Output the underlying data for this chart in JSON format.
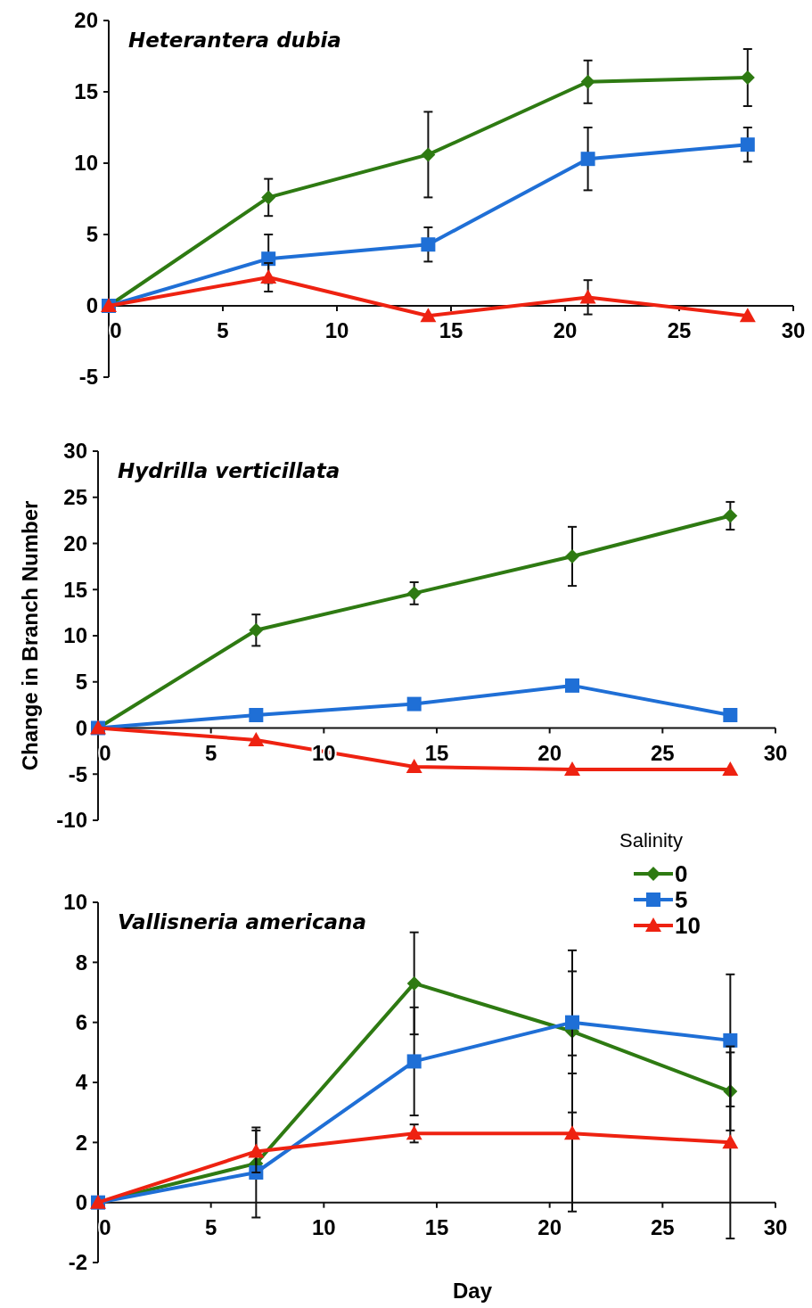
{
  "chart_data": [
    {
      "type": "line",
      "title": "Heterantera dubia",
      "x": [
        0,
        7,
        14,
        21,
        28
      ],
      "xlim": [
        0,
        30
      ],
      "xticks": [
        0,
        5,
        10,
        15,
        20,
        25,
        30
      ],
      "ylim": [
        -5,
        20
      ],
      "yticks": [
        -5,
        0,
        5,
        10,
        15,
        20
      ],
      "legend": false,
      "series": [
        {
          "color": "#2e7a12",
          "marker": "diamond",
          "values": [
            0,
            7.6,
            10.6,
            15.7,
            16.0
          ],
          "errors": [
            null,
            1.3,
            3.0,
            1.5,
            2.0
          ]
        },
        {
          "color": "#1f6fd6",
          "marker": "square",
          "values": [
            0,
            3.3,
            4.3,
            10.3,
            11.3
          ],
          "errors": [
            null,
            1.7,
            1.2,
            2.2,
            1.2
          ]
        },
        {
          "color": "#ee2211",
          "marker": "triangle",
          "values": [
            0,
            2.0,
            -0.7,
            0.6,
            -0.7
          ],
          "errors": [
            null,
            1.0,
            null,
            1.2,
            null
          ]
        }
      ]
    },
    {
      "type": "line",
      "title": "Hydrilla verticillata",
      "ylabel": "Change in Branch Number",
      "x": [
        0,
        7,
        14,
        21,
        28
      ],
      "xlim": [
        0,
        30
      ],
      "xticks": [
        0,
        5,
        10,
        15,
        20,
        25,
        30
      ],
      "ylim": [
        -10,
        30
      ],
      "yticks": [
        -10,
        -5,
        0,
        5,
        10,
        15,
        20,
        25,
        30
      ],
      "legend": false,
      "series": [
        {
          "color": "#2e7a12",
          "marker": "diamond",
          "values": [
            0,
            10.6,
            14.6,
            18.6,
            23.0
          ],
          "errors": [
            null,
            1.7,
            1.2,
            3.2,
            1.5
          ]
        },
        {
          "color": "#1f6fd6",
          "marker": "square",
          "values": [
            0,
            1.4,
            2.6,
            4.6,
            1.4
          ]
        },
        {
          "color": "#ee2211",
          "marker": "triangle",
          "values": [
            0,
            -1.3,
            -4.2,
            -4.5,
            -4.5
          ]
        }
      ]
    },
    {
      "type": "line",
      "title": "Vallisneria americana",
      "xlabel": "Day",
      "legend_title": "Salinity",
      "legend": "top right",
      "x": [
        0,
        7,
        14,
        21,
        28
      ],
      "xlim": [
        0,
        30
      ],
      "xticks": [
        0,
        5,
        10,
        15,
        20,
        25,
        30
      ],
      "ylim": [
        -2,
        10
      ],
      "yticks": [
        -2,
        0,
        2,
        4,
        6,
        8,
        10
      ],
      "series": [
        {
          "name": "0",
          "color": "#2e7a12",
          "marker": "diamond",
          "values": [
            0,
            1.3,
            7.3,
            5.7,
            3.7
          ],
          "errors": [
            null,
            null,
            1.7,
            2.7,
            1.3
          ]
        },
        {
          "name": "5",
          "color": "#1f6fd6",
          "marker": "square",
          "values": [
            0,
            1.0,
            4.7,
            6.0,
            5.4
          ],
          "errors": [
            null,
            1.5,
            1.8,
            1.7,
            2.2
          ]
        },
        {
          "name": "10",
          "color": "#ee2211",
          "marker": "triangle",
          "values": [
            0,
            1.7,
            2.3,
            2.3,
            2.0
          ],
          "errors": [
            null,
            0.7,
            0.3,
            2.6,
            3.2
          ]
        }
      ]
    }
  ]
}
